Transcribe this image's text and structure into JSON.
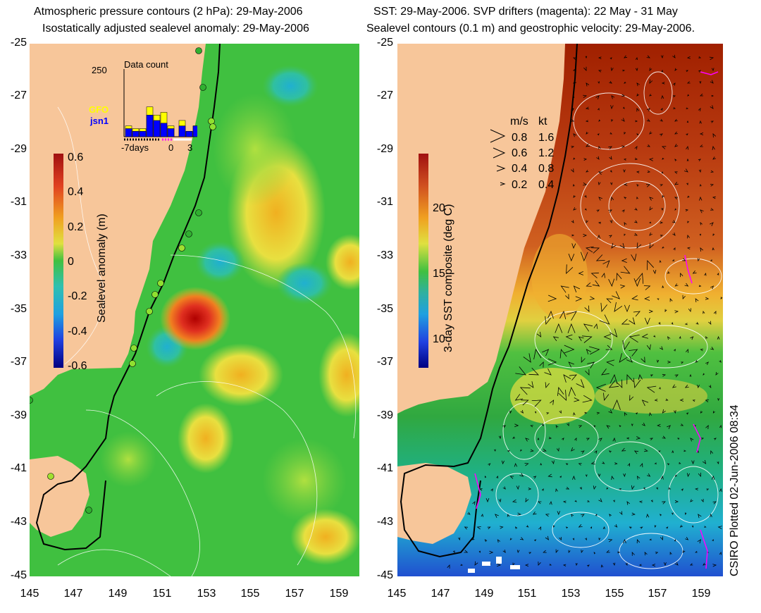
{
  "left": {
    "title1": "Atmospheric pressure contours (2 hPa): 29-May-2006",
    "title2": "Isostatically adjusted sealevel anomaly: 29-May-2006",
    "colorbar": {
      "label": "Sealevel anomaly (m)",
      "ticks": [
        "0.6",
        "0.4",
        "0.2",
        "0",
        "-0.2",
        "-0.4",
        "-0.6"
      ]
    },
    "inset": {
      "title": "Data count",
      "ymax": "250",
      "series1": "GFO",
      "series2": "jsn1",
      "xlabels": [
        "-7days",
        "0",
        "3"
      ],
      "bars_total": [
        40,
        30,
        30,
        110,
        80,
        90,
        40,
        60,
        20,
        40
      ],
      "bars_blue": [
        30,
        20,
        20,
        80,
        60,
        50,
        30,
        40,
        20,
        40
      ]
    }
  },
  "right": {
    "title1": "SST: 29-May-2006. SVP drifters (magenta): 22 May - 31 May",
    "title2": "Sealevel contours (0.1 m) and geostrophic velocity: 29-May-2006.",
    "colorbar": {
      "label": "3-day SST composite (deg C)",
      "ticks": [
        "20",
        "15",
        "10"
      ]
    },
    "legend": {
      "h1": "m/s",
      "h2": "kt",
      "rows": [
        [
          "0.8",
          "1.6"
        ],
        [
          "0.6",
          "1.2"
        ],
        [
          "0.4",
          "0.8"
        ],
        [
          "0.2",
          "0.4"
        ]
      ]
    }
  },
  "yticks": [
    "-25",
    "-27",
    "-29",
    "-31",
    "-33",
    "-35",
    "-37",
    "-39",
    "-41",
    "-43",
    "-45"
  ],
  "xticks": [
    "145",
    "147",
    "149",
    "151",
    "153",
    "155",
    "157",
    "159"
  ],
  "credit": "CSIRO Plotted 02-Jun-2006 08:34"
}
